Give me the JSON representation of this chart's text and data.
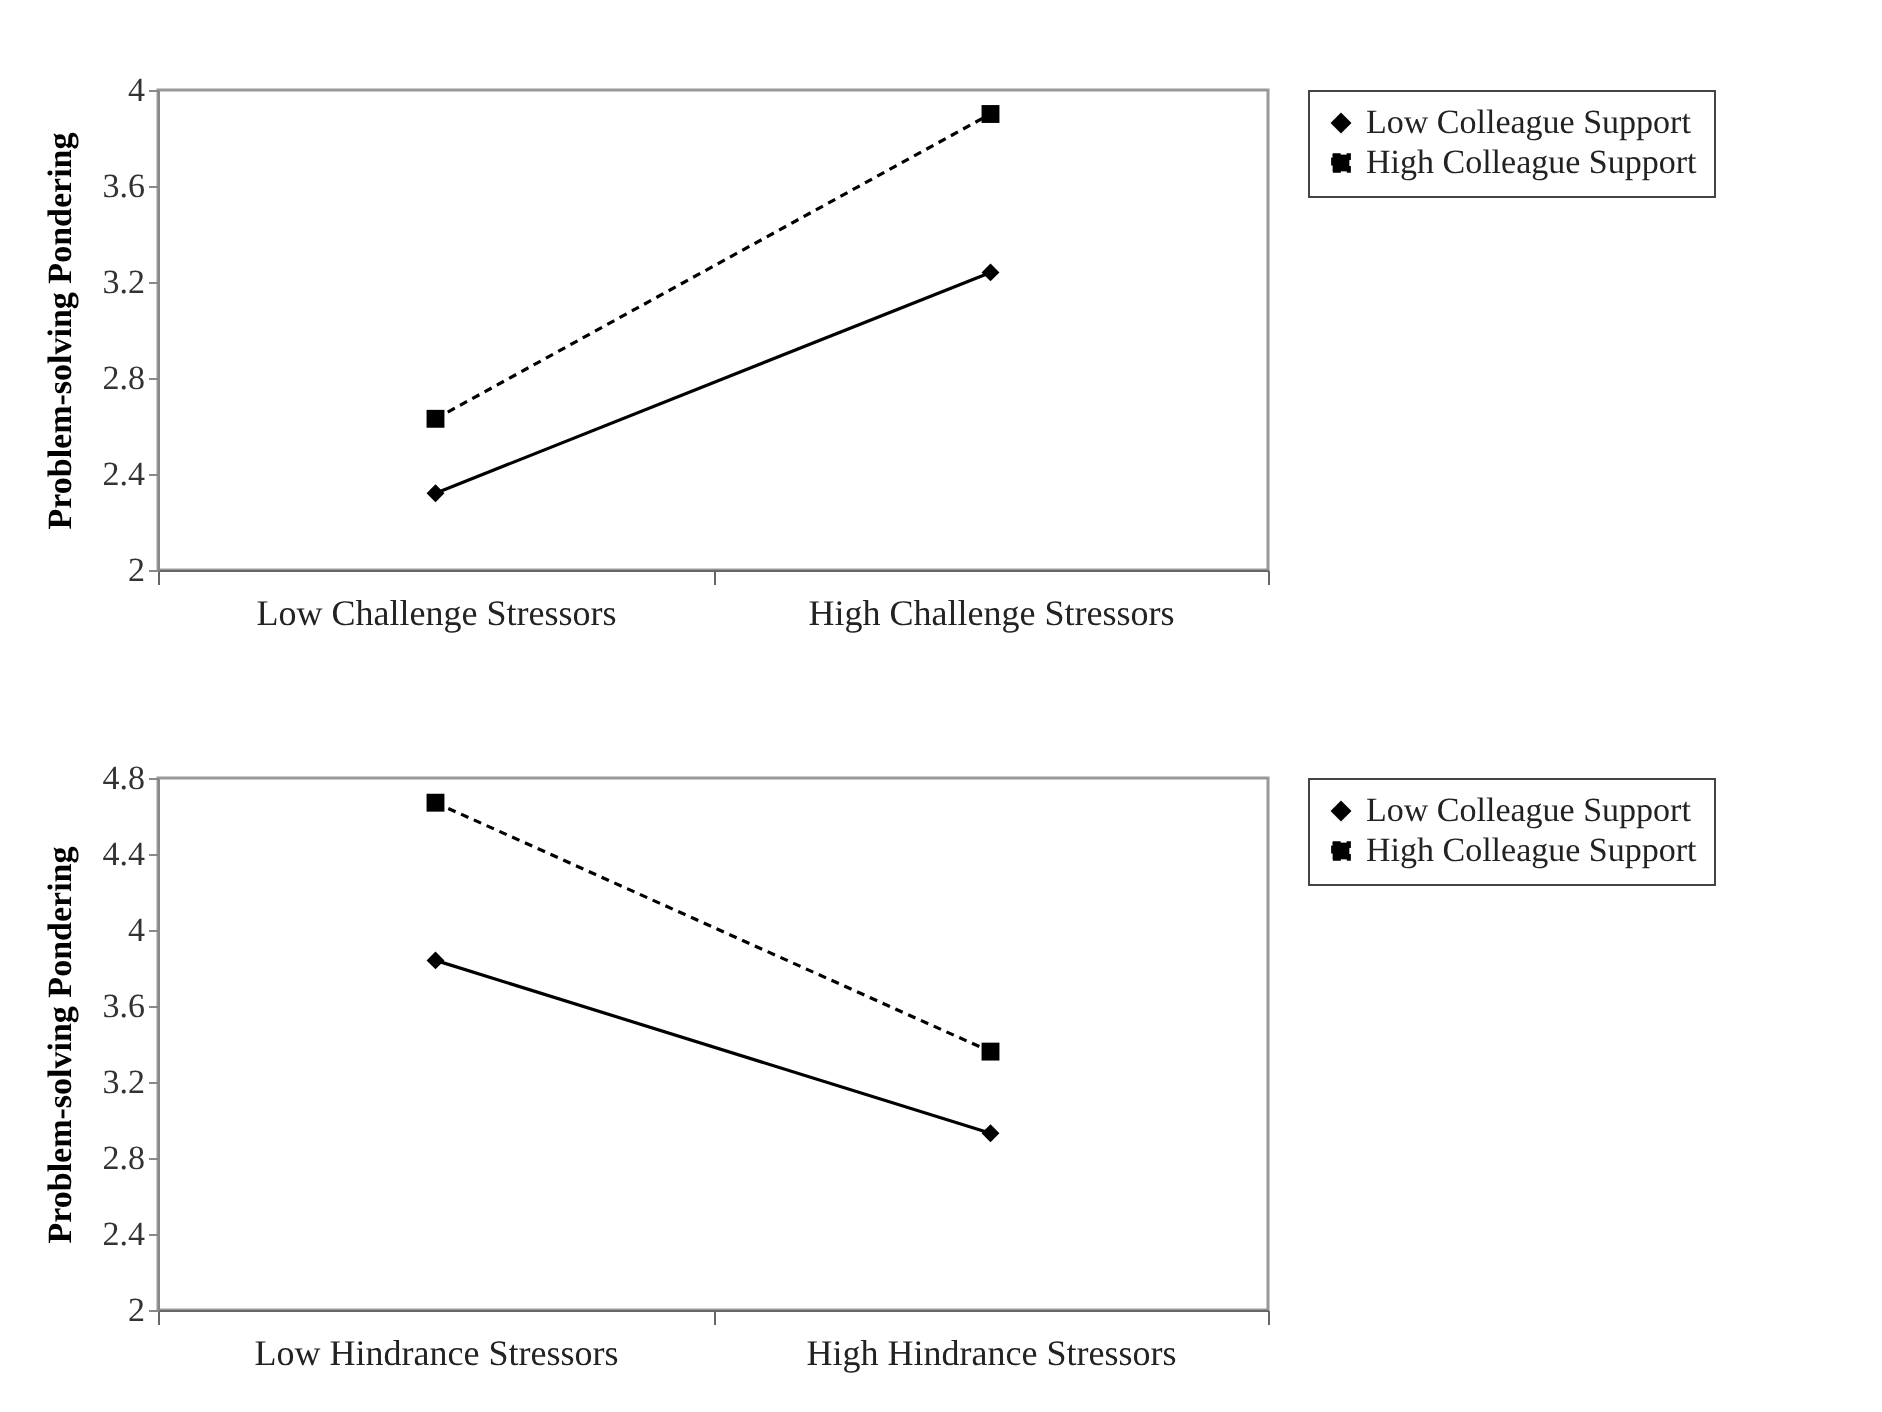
{
  "chart_data": [
    {
      "type": "line",
      "categories": [
        "Low Challenge Stressors",
        "High Challenge Stressors"
      ],
      "ylabel": "Problem-solving Pondering",
      "ylim": [
        2,
        4
      ],
      "yticks": [
        2,
        2.4,
        2.8,
        3.2,
        3.6,
        4
      ],
      "legend": "right",
      "series": [
        {
          "name": "Low Colleague Support",
          "color": "#000000",
          "values": [
            2.32,
            3.24
          ],
          "marker": "diamond",
          "line_style": "solid"
        },
        {
          "name": "High Colleague Support",
          "color": "#000000",
          "values": [
            2.63,
            3.9
          ],
          "marker": "square",
          "line_style": "dashed"
        }
      ]
    },
    {
      "type": "line",
      "categories": [
        "Low Hindrance Stressors",
        "High Hindrance Stressors"
      ],
      "ylabel": "Problem-solving Pondering",
      "ylim": [
        2,
        4.8
      ],
      "yticks": [
        2,
        2.4,
        2.8,
        3.2,
        3.6,
        4,
        4.4,
        4.8
      ],
      "legend": "right",
      "series": [
        {
          "name": "Low Colleague Support",
          "color": "#000000",
          "values": [
            3.84,
            2.93
          ],
          "marker": "diamond",
          "line_style": "solid"
        },
        {
          "name": "High Colleague Support",
          "color": "#000000",
          "values": [
            4.67,
            3.36
          ],
          "marker": "square",
          "line_style": "dashed"
        }
      ]
    }
  ]
}
